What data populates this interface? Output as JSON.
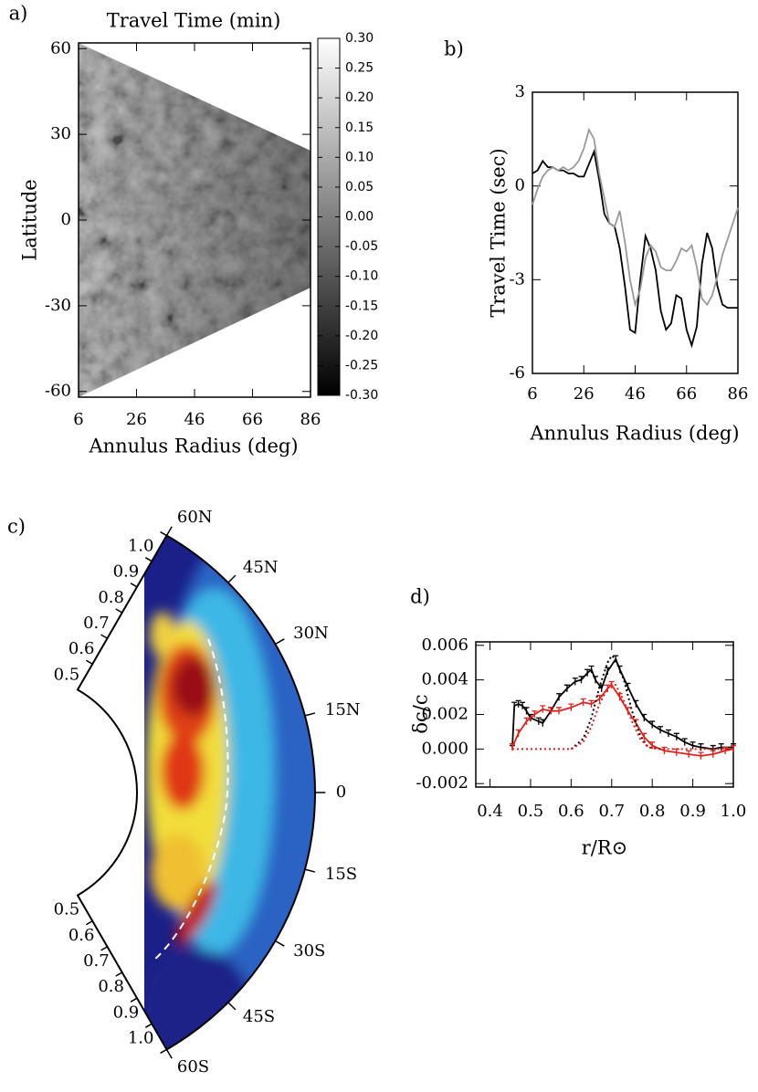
{
  "chart_data": [
    {
      "type": "heatmap",
      "panel_label": "a)",
      "title": "Travel Time (min)",
      "xlabel": "Annulus Radius (deg)",
      "ylabel": "Latitude",
      "xlim": [
        6,
        86
      ],
      "xticks": [
        6,
        26,
        46,
        66,
        86
      ],
      "ylim": [
        -62,
        62
      ],
      "yticks": [
        -60,
        -30,
        0,
        30,
        60
      ],
      "colorbar": {
        "lim": [
          -0.3,
          0.3
        ],
        "ticks": [
          {
            "value": 0.3,
            "label": "0.30"
          },
          {
            "value": 0.25,
            "label": "0.25"
          },
          {
            "value": 0.2,
            "label": "0.20"
          },
          {
            "value": 0.15,
            "label": "0.15"
          },
          {
            "value": 0.1,
            "label": "0.10"
          },
          {
            "value": 0.05,
            "label": "0.05"
          },
          {
            "value": 0,
            "label": "0.00"
          },
          {
            "value": -0.05,
            "label": "-0.05"
          },
          {
            "value": -0.1,
            "label": "-0.10"
          },
          {
            "value": -0.15,
            "label": "-0.15"
          },
          {
            "value": -0.2,
            "label": "-0.20"
          },
          {
            "value": -0.25,
            "label": "-0.25"
          },
          {
            "value": -0.3,
            "label": "-0.30"
          }
        ]
      }
    },
    {
      "type": "line",
      "panel_label": "b)",
      "xlabel": "Annulus Radius (deg)",
      "ylabel": "Travel Time (sec)",
      "xlim": [
        6,
        86
      ],
      "xticks": [
        6,
        26,
        46,
        66,
        86
      ],
      "ylim": [
        -6,
        3
      ],
      "yticks": [
        -6,
        -3,
        0,
        3
      ],
      "x": [
        6,
        8,
        10,
        12,
        14,
        16,
        18,
        20,
        22,
        24,
        26,
        28,
        30,
        32,
        34,
        36,
        38,
        40,
        42,
        44,
        46,
        48,
        50,
        52,
        54,
        56,
        58,
        60,
        62,
        64,
        66,
        68,
        70,
        72,
        74,
        76,
        78,
        80,
        82,
        84,
        86
      ],
      "series": [
        {
          "color": "#000000",
          "values": [
            0.4,
            0.5,
            0.8,
            0.6,
            0.6,
            0.5,
            0.5,
            0.4,
            0.4,
            0.3,
            0.3,
            0.7,
            1.1,
            0.2,
            -0.9,
            -1.2,
            -1.3,
            -2.0,
            -3.2,
            -4.6,
            -4.7,
            -3.0,
            -1.6,
            -2.0,
            -2.7,
            -4.0,
            -4.6,
            -4.4,
            -3.5,
            -3.6,
            -4.6,
            -5.1,
            -4.5,
            -2.5,
            -1.5,
            -2.0,
            -3.2,
            -3.8,
            -3.9,
            -3.9,
            -3.9
          ]
        },
        {
          "color": "#999999",
          "values": [
            -0.6,
            -0.1,
            0.3,
            0.5,
            0.6,
            0.5,
            0.6,
            0.5,
            0.6,
            0.8,
            1.2,
            1.8,
            1.5,
            0.4,
            -0.4,
            -1.2,
            -1.3,
            -0.8,
            -1.8,
            -3.0,
            -3.8,
            -3.3,
            -2.3,
            -1.9,
            -2.1,
            -2.6,
            -2.7,
            -2.7,
            -2.4,
            -2.0,
            -2.1,
            -1.9,
            -2.6,
            -3.6,
            -3.8,
            -3.5,
            -2.9,
            -2.2,
            -1.7,
            -1.2,
            -0.7
          ]
        }
      ]
    },
    {
      "type": "polar-heatmap",
      "panel_label": "c)",
      "rlim": [
        0.4,
        1.0
      ],
      "rticks": [
        0.5,
        0.6,
        0.7,
        0.8,
        0.9,
        {
          "value": 1.0,
          "label": "1.0"
        }
      ],
      "thetalim": [
        -60,
        60
      ],
      "thetaticks": [
        {
          "value": 60,
          "label": "60N"
        },
        {
          "value": 45,
          "label": "45N"
        },
        {
          "value": 30,
          "label": "30N"
        },
        {
          "value": 15,
          "label": "15N"
        },
        0,
        {
          "value": -15,
          "label": "15S"
        },
        {
          "value": -30,
          "label": "30S"
        },
        {
          "value": -45,
          "label": "45S"
        },
        {
          "value": -60,
          "label": "60S"
        }
      ]
    },
    {
      "type": "line",
      "panel_label": "d)",
      "xlabel": "r/R⊙",
      "ylabel": "δc/c",
      "xlim": [
        0.365,
        1.0
      ],
      "xticks": [
        0.4,
        0.5,
        0.6,
        0.7,
        0.8,
        0.9,
        {
          "value": 1.0,
          "label": "1.0"
        }
      ],
      "ylim": [
        -0.0022,
        0.0062
      ],
      "yticks": [
        -0.002,
        {
          "value": 0,
          "label": "0.000"
        },
        0.002,
        0.004,
        0.006
      ],
      "series": [
        {
          "color": "#000000",
          "x": [
            0.455,
            0.46,
            0.47,
            0.48,
            0.49,
            0.5,
            0.52,
            0.53,
            0.55,
            0.57,
            0.59,
            0.61,
            0.625,
            0.64,
            0.65,
            0.66,
            0.675,
            0.69,
            0.71,
            0.72,
            0.74,
            0.76,
            0.78,
            0.8,
            0.82,
            0.84,
            0.86,
            0.88,
            0.9,
            0.92,
            0.95,
            0.97,
            1.0
          ],
          "values": [
            0.0001,
            0.0025,
            0.0026,
            0.0025,
            0.0022,
            0.0018,
            0.0016,
            0.0015,
            0.0022,
            0.003,
            0.0035,
            0.0039,
            0.004,
            0.0044,
            0.0046,
            0.004,
            0.0035,
            0.0045,
            0.0052,
            0.0046,
            0.0036,
            0.0026,
            0.0018,
            0.0014,
            0.0011,
            0.0009,
            0.0007,
            0.0004,
            0.0002,
            0.0001,
            0,
            0.0001,
            0.0001
          ],
          "errors": [
            0.0001,
            0.0002,
            0.0002,
            0.0002,
            0.0002,
            0.0002,
            0.0002,
            0.0002,
            0.0002,
            0.0002,
            0.0002,
            0.0002,
            0.0002,
            0.0002,
            0.0002,
            0.0002,
            0.0002,
            0.0002,
            0.0002,
            0.0002,
            0.0002,
            0.0002,
            0.0002,
            0.0002,
            0.0002,
            0.0002,
            0.0002,
            0.0002,
            0.0002,
            0.0002,
            0.0002,
            0.0002,
            0.0002
          ]
        },
        {
          "color": "#e0201b",
          "x": [
            0.455,
            0.47,
            0.49,
            0.51,
            0.53,
            0.55,
            0.57,
            0.6,
            0.63,
            0.65,
            0.67,
            0.69,
            0.7,
            0.72,
            0.74,
            0.76,
            0.78,
            0.8,
            0.83,
            0.86,
            0.89,
            0.92,
            0.95,
            0.98,
            1.0
          ],
          "values": [
            0.0001,
            0.0009,
            0.0016,
            0.002,
            0.0023,
            0.0022,
            0.0022,
            0.0024,
            0.0027,
            0.0026,
            0.0029,
            0.0035,
            0.0037,
            0.003,
            0.0022,
            0.0015,
            0.0007,
            0.0002,
            -0.0001,
            -0.0002,
            -0.0003,
            -0.0004,
            -0.0003,
            -0.0001,
            0
          ],
          "errors": [
            0.0002,
            0.0002,
            0.0002,
            0.0002,
            0.0002,
            0.0002,
            0.0002,
            0.0002,
            0.0002,
            0.0002,
            0.0002,
            0.0002,
            0.0002,
            0.0002,
            0.0002,
            0.0002,
            0.0002,
            0.0002,
            0.0002,
            0.0002,
            0.0002,
            0.0002,
            0.0002,
            0.0002,
            0.0002
          ]
        },
        {
          "color": "#000000",
          "dash": "dotted",
          "x": [
            0.6,
            0.63,
            0.65,
            0.67,
            0.69,
            0.7,
            0.71,
            0.73,
            0.75,
            0.77,
            0.79,
            0.82
          ],
          "values": [
            0,
            0.0006,
            0.0018,
            0.0036,
            0.005,
            0.0054,
            0.0052,
            0.004,
            0.0022,
            0.0008,
            0.0001,
            0
          ]
        },
        {
          "color": "#e0201b",
          "dash": "dotted",
          "x": [
            0.455,
            0.6,
            0.63,
            0.65,
            0.67,
            0.69,
            0.7,
            0.71,
            0.73,
            0.75,
            0.77,
            0.79,
            0.82,
            1.0
          ],
          "values": [
            0,
            0,
            0.0004,
            0.0013,
            0.0026,
            0.0035,
            0.0038,
            0.0037,
            0.0028,
            0.0016,
            0.0006,
            0.0001,
            0,
            0
          ]
        }
      ]
    }
  ]
}
